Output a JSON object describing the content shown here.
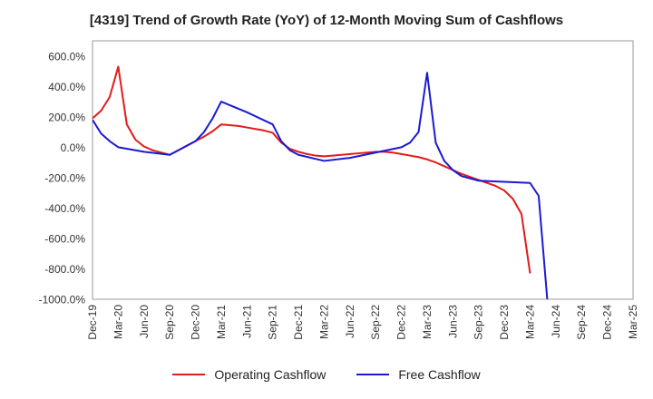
{
  "chart_data": {
    "type": "line",
    "title": "[4319]  Trend of Growth Rate (YoY) of 12-Month Moving Sum of Cashflows",
    "xlabel": "",
    "ylabel": "",
    "ylim": [
      -1000,
      700
    ],
    "yticks": [
      600,
      400,
      200,
      0,
      -200,
      -400,
      -600,
      -800,
      -1000
    ],
    "ytick_labels": [
      "600.0%",
      "400.0%",
      "200.0%",
      "0.0%",
      "-200.0%",
      "-400.0%",
      "-600.0%",
      "-800.0%",
      "-1000.0%"
    ],
    "xticks": [
      "Dec-19",
      "Mar-20",
      "Jun-20",
      "Sep-20",
      "Dec-20",
      "Mar-21",
      "Jun-21",
      "Sep-21",
      "Dec-21",
      "Mar-22",
      "Jun-22",
      "Sep-22",
      "Dec-22",
      "Mar-23",
      "Jun-23",
      "Sep-23",
      "Dec-23",
      "Mar-24",
      "Jun-24",
      "Sep-24",
      "Dec-24",
      "Mar-25"
    ],
    "grid": true,
    "legend_position": "bottom",
    "series": [
      {
        "name": "Operating Cashflow",
        "color": "#e31a1c",
        "x": [
          "Dec-19",
          "Jan-20",
          "Feb-20",
          "Mar-20",
          "Apr-20",
          "May-20",
          "Jun-20",
          "Jul-20",
          "Aug-20",
          "Sep-20",
          "Oct-20",
          "Nov-20",
          "Dec-20",
          "Jan-21",
          "Feb-21",
          "Mar-21",
          "Apr-21",
          "May-21",
          "Jun-21",
          "Jul-21",
          "Aug-21",
          "Sep-21",
          "Oct-21",
          "Nov-21",
          "Dec-21",
          "Jan-22",
          "Feb-22",
          "Mar-22",
          "Apr-22",
          "May-22",
          "Jun-22",
          "Jul-22",
          "Aug-22",
          "Sep-22",
          "Oct-22",
          "Nov-22",
          "Dec-22",
          "Jan-23",
          "Feb-23",
          "Mar-23",
          "Apr-23",
          "May-23",
          "Jun-23",
          "Jul-23",
          "Aug-23",
          "Sep-23",
          "Oct-23",
          "Nov-23",
          "Dec-23",
          "Jan-24",
          "Feb-24",
          "Mar-24"
        ],
        "values": [
          190,
          240,
          330,
          530,
          150,
          50,
          5,
          -20,
          -35,
          -50,
          -20,
          10,
          40,
          70,
          105,
          150,
          145,
          140,
          130,
          120,
          110,
          95,
          30,
          -10,
          -30,
          -45,
          -55,
          -60,
          -55,
          -50,
          -45,
          -40,
          -35,
          -30,
          -30,
          -35,
          -45,
          -55,
          -65,
          -80,
          -100,
          -125,
          -150,
          -175,
          -195,
          -215,
          -235,
          -255,
          -285,
          -340,
          -440,
          -830
        ],
        "x_index": [
          0,
          1,
          2,
          3,
          4,
          5,
          6,
          7,
          8,
          9,
          10,
          11,
          12,
          13,
          14,
          15,
          16,
          17,
          18,
          19,
          20,
          21,
          22,
          23,
          24,
          25,
          26,
          27,
          28,
          29,
          30,
          31,
          32,
          33,
          34,
          35,
          36,
          37,
          38,
          39,
          40,
          41,
          42,
          43,
          44,
          45,
          46,
          47,
          48,
          49,
          50,
          51
        ]
      },
      {
        "name": "Free Cashflow",
        "color": "#1a1ad4",
        "x": [
          "Dec-19",
          "Jan-20",
          "Feb-20",
          "Mar-20",
          "Jun-20",
          "Sep-20",
          "Dec-20",
          "Jan-21",
          "Feb-21",
          "Mar-21",
          "Jun-21",
          "Sep-21",
          "Oct-21",
          "Nov-21",
          "Dec-21",
          "Mar-22",
          "Jun-22",
          "Sep-22",
          "Dec-22",
          "Jan-23",
          "Feb-23",
          "Mar-23",
          "Apr-23",
          "May-23",
          "Jun-23",
          "Jul-23",
          "Sep-23",
          "Mar-24",
          "Apr-24",
          "May-24"
        ],
        "values": [
          180,
          90,
          40,
          0,
          -30,
          -50,
          40,
          100,
          190,
          300,
          230,
          150,
          40,
          -20,
          -50,
          -90,
          -70,
          -35,
          0,
          30,
          100,
          490,
          30,
          -90,
          -150,
          -190,
          -220,
          -235,
          -320,
          -1000
        ],
        "x_index": [
          0,
          1,
          2,
          3,
          6,
          9,
          12,
          13,
          14,
          15,
          18,
          21,
          22,
          23,
          24,
          27,
          30,
          33,
          36,
          37,
          38,
          39,
          40,
          41,
          42,
          43,
          45,
          51,
          52,
          53
        ]
      }
    ]
  }
}
